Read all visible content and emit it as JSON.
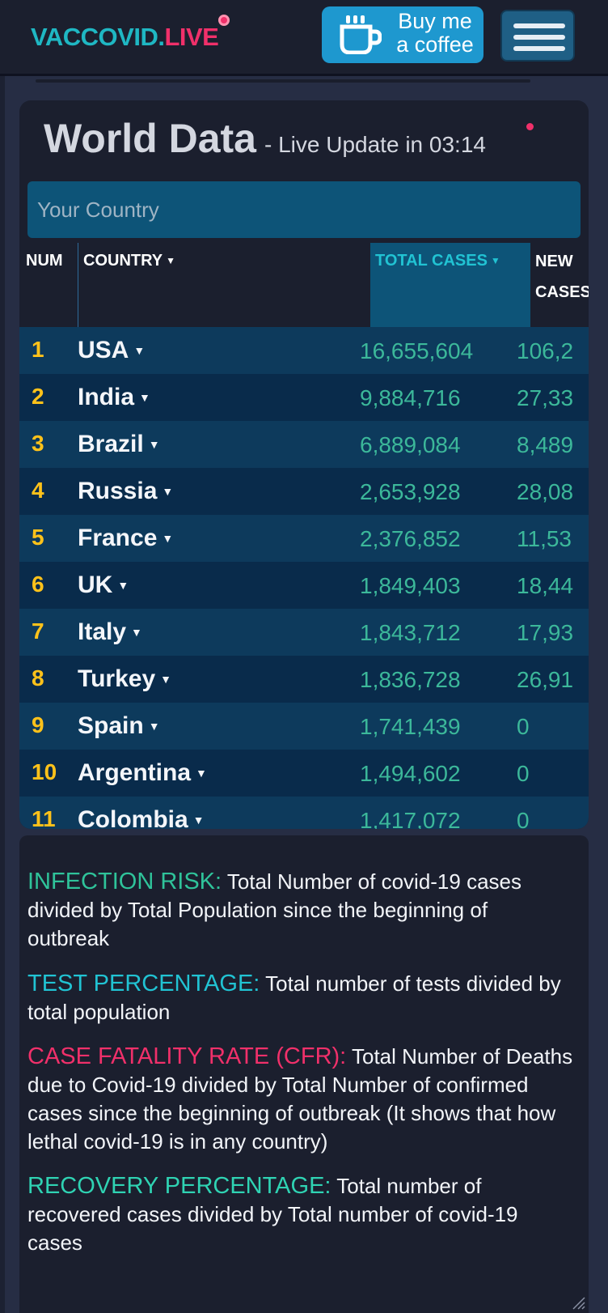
{
  "header": {
    "logo_part1": "VACCOVID.",
    "logo_part2": "LIVE",
    "coffee_line1": "Buy me",
    "coffee_line2": "a coffee",
    "menu_icon": "hamburger-icon",
    "colors": {
      "brand_teal": "#1fb7c3",
      "brand_pink": "#f0306a",
      "coffee_blue": "#1e98cf"
    }
  },
  "world": {
    "title": "World Data",
    "subtitle": "- Live Update in 03:14",
    "search_placeholder": "Your Country",
    "columns": {
      "num": "NUM",
      "country": "COUNTRY",
      "total": "TOTAL CASES",
      "new_line1": "NEW",
      "new_line2": "CASES"
    },
    "rows": [
      {
        "rank": "1",
        "country": "USA",
        "total": "16,655,604",
        "new": "106,2"
      },
      {
        "rank": "2",
        "country": "India",
        "total": "9,884,716",
        "new": "27,33"
      },
      {
        "rank": "3",
        "country": "Brazil",
        "total": "6,889,084",
        "new": "8,489"
      },
      {
        "rank": "4",
        "country": "Russia",
        "total": "2,653,928",
        "new": "28,08"
      },
      {
        "rank": "5",
        "country": "France",
        "total": "2,376,852",
        "new": "11,53"
      },
      {
        "rank": "6",
        "country": "UK",
        "total": "1,849,403",
        "new": "18,44"
      },
      {
        "rank": "7",
        "country": "Italy",
        "total": "1,843,712",
        "new": "17,93"
      },
      {
        "rank": "8",
        "country": "Turkey",
        "total": "1,836,728",
        "new": "26,91"
      },
      {
        "rank": "9",
        "country": "Spain",
        "total": "1,741,439",
        "new": "0"
      },
      {
        "rank": "10",
        "country": "Argentina",
        "total": "1,494,602",
        "new": "0"
      },
      {
        "rank": "11",
        "country": "Colombia",
        "total": "1,417,072",
        "new": "0"
      }
    ],
    "colors": {
      "rank": "#ffc21a",
      "value": "#3cb89a",
      "row_a": "#0d3a5c",
      "row_b": "#092b4b"
    }
  },
  "definitions": [
    {
      "key": "INFECTION RISK:",
      "text": " Total Number of covid-19 cases divided by Total Population since the beginning of outbreak",
      "color": "#2fc39a"
    },
    {
      "key": "TEST PERCENTAGE:",
      "text": " Total number of tests divided by total population",
      "color": "#21c3d3"
    },
    {
      "key": "CASE FATALITY RATE (CFR):",
      "text": " Total Number of Deaths due to Covid-19 divided by Total Number of confirmed cases since the beginning of outbreak (It shows that how lethal covid-19 is in any country)",
      "color": "#f0306a"
    },
    {
      "key": "RECOVERY PERCENTAGE:",
      "text": " Total number of recovered cases divided by Total number of covid-19 cases",
      "color": "#2fd3b3"
    }
  ]
}
